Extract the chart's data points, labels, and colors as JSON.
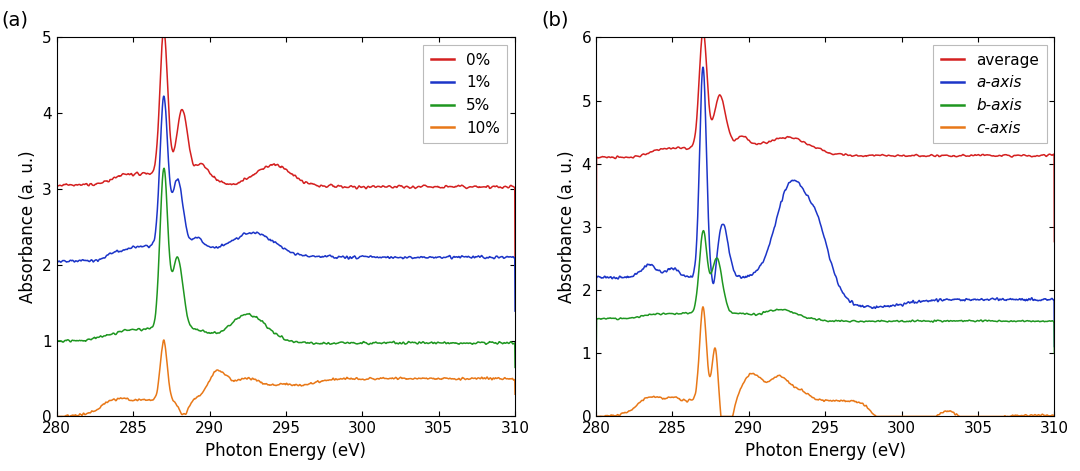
{
  "xlim": [
    280,
    310
  ],
  "xticks": [
    280,
    285,
    290,
    295,
    300,
    305,
    310
  ],
  "panel_a": {
    "label": "(a)",
    "ylim": [
      0,
      5
    ],
    "yticks": [
      0,
      1,
      2,
      3,
      4,
      5
    ],
    "ylabel": "Absorbance (a. u.)",
    "xlabel": "Photon Energy (eV)",
    "legend_labels": [
      "0%",
      "1%",
      "5%",
      "10%"
    ],
    "colors": [
      "#d42020",
      "#1c35c8",
      "#1e9620",
      "#e87818"
    ]
  },
  "panel_b": {
    "label": "(b)",
    "ylim": [
      0,
      6
    ],
    "yticks": [
      0,
      1,
      2,
      3,
      4,
      5,
      6
    ],
    "ylabel": "Absorbance (a. u.)",
    "xlabel": "Photon Energy (eV)",
    "legend_labels": [
      "average",
      "a-axis",
      "b-axis",
      "c-axis"
    ],
    "legend_styles": [
      "normal",
      "italic",
      "italic",
      "italic"
    ],
    "colors": [
      "#d42020",
      "#1c35c8",
      "#1e9620",
      "#e87818"
    ]
  },
  "background_color": "#ffffff",
  "linewidth": 1.1
}
